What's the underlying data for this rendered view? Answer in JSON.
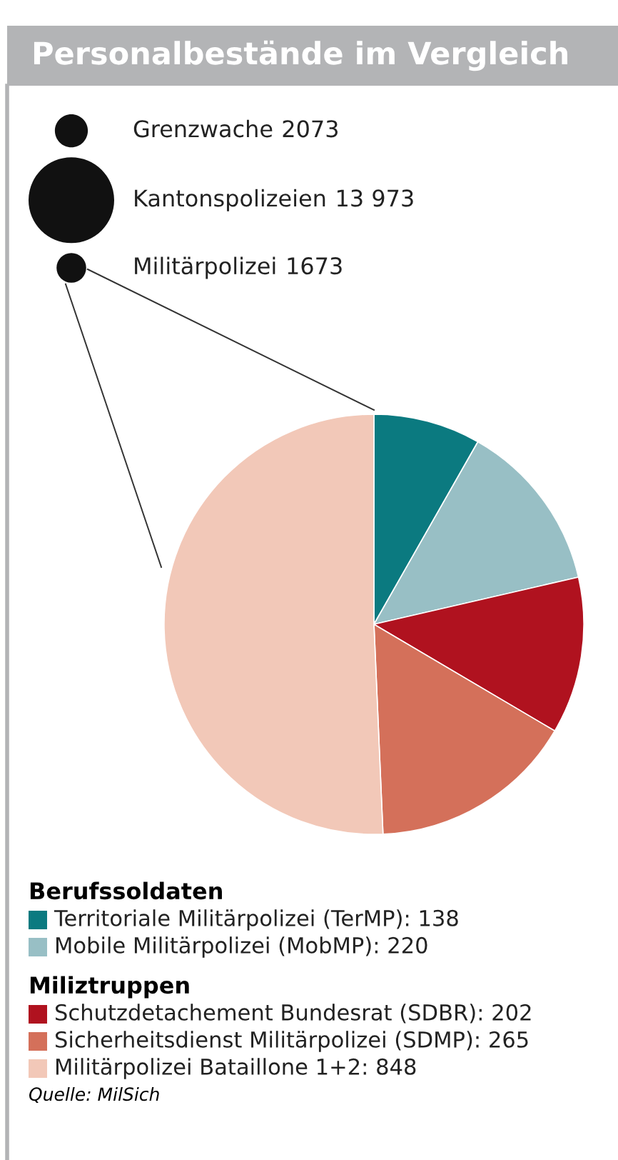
{
  "chart_data": [
    {
      "type": "other",
      "title": "Personalbestände im Vergleich",
      "categories": [
        "Grenzwache",
        "Kantonspolizeien",
        "Militärpolizei"
      ],
      "values": [
        2073,
        13973,
        1673
      ],
      "value_labels": [
        "2073",
        "13 973",
        "1673"
      ],
      "color": "#111111"
    },
    {
      "type": "pie",
      "categories": [
        "Territoriale Militärpolizei (TerMP): 138",
        "Mobile Militärpolizei (MobMP): 220",
        "Schutzdetachement Bundesrat (SDBR): 202",
        "Sicherheitsdienst Militärpolizei (SDMP): 265",
        "Militärpolizei Bataillone 1+2: 848"
      ],
      "values": [
        138,
        220,
        202,
        265,
        848
      ],
      "colors": [
        "#0b7a80",
        "#98bfc5",
        "#b0121f",
        "#d4705a",
        "#f2c8b8"
      ],
      "legend": "bottom",
      "annotations": [
        {
          "text": "Berufssoldaten",
          "x": "Territoriale Militärpolizei (TerMP): 138"
        },
        {
          "text": "Miliztruppen",
          "x": "Schutzdetachement Bundesrat (SDBR): 202"
        },
        "Quelle: MilSich"
      ]
    }
  ]
}
